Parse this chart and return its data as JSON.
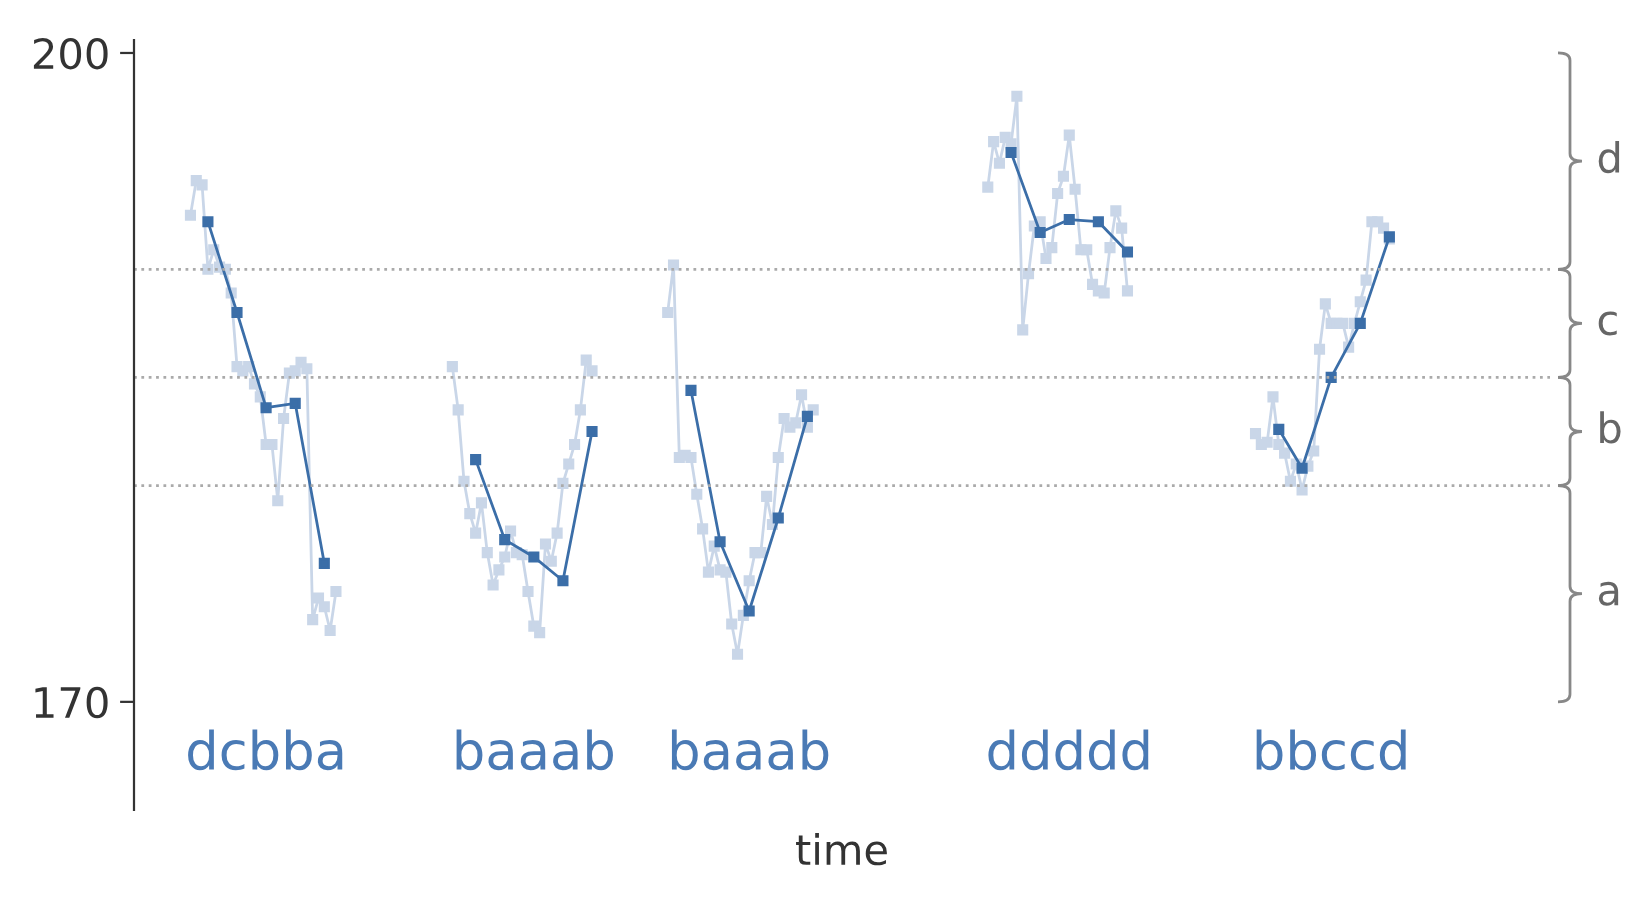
{
  "chart_data": {
    "type": "line",
    "xlabel": "time",
    "ylim": [
      165,
      200.6
    ],
    "yticks": [
      170,
      200
    ],
    "categories": [
      null,
      null,
      null,
      null,
      null,
      null,
      null,
      null,
      null,
      null,
      null,
      null,
      null,
      "dcbba",
      null,
      null,
      null,
      null,
      null,
      null,
      null,
      null,
      null,
      null,
      null,
      null,
      null,
      null,
      null,
      null,
      null,
      null,
      null,
      null,
      null,
      null,
      null,
      null,
      null,
      null,
      null,
      null,
      null,
      null,
      null,
      null,
      null,
      null,
      null,
      null,
      null,
      null,
      null,
      null,
      null,
      null,
      null,
      null,
      null,
      "baaab",
      null,
      null,
      null,
      null,
      null,
      null,
      null,
      null,
      null,
      null,
      null,
      null,
      null,
      null,
      null,
      null,
      null,
      null,
      null,
      null,
      null,
      null,
      null,
      null,
      null,
      null,
      null,
      null,
      null,
      null,
      null,
      null,
      null,
      null,
      null,
      null,
      "baaab",
      null,
      null,
      null,
      null,
      null,
      null,
      null,
      null,
      null,
      null,
      null,
      null,
      null,
      null,
      null,
      null,
      null,
      null,
      null,
      null,
      null,
      null,
      null,
      null,
      null,
      null,
      null,
      null,
      null,
      null,
      null,
      null,
      null,
      null,
      null,
      null,
      null,
      null,
      null,
      null,
      null,
      null,
      null,
      null,
      null,
      null,
      null,
      null,
      null,
      null,
      null,
      null,
      null,
      null,
      "ddddd",
      null,
      null,
      null,
      null,
      null,
      null,
      null,
      null,
      null,
      null,
      null,
      null,
      null,
      null,
      null,
      null,
      null,
      null,
      null,
      null,
      null,
      null,
      null,
      null,
      null,
      null,
      null,
      null,
      null,
      null,
      null,
      null,
      null,
      null,
      null,
      null,
      null,
      null,
      null,
      null,
      null,
      null,
      null,
      null,
      "bbccd",
      null,
      null,
      null,
      null,
      null,
      null,
      null,
      null,
      null,
      null
    ],
    "marker": "square",
    "grid": false,
    "ref_lines": [
      {
        "axis": "y",
        "value": 180,
        "line_style": "dotted",
        "color": "#aaaaaa"
      },
      {
        "axis": "y",
        "value": 185,
        "line_style": "dotted",
        "color": "#aaaaaa"
      },
      {
        "axis": "y",
        "value": 190,
        "line_style": "dotted",
        "color": "#aaaaaa"
      }
    ],
    "annotations": [
      "a",
      "b",
      "c",
      "d"
    ],
    "series": [
      {
        "color": "#c9d6e8",
        "values": [
          192.5,
          194.1,
          193.9,
          190.0,
          190.9,
          190.1,
          190.0,
          188.9,
          185.5,
          185.3,
          185.5,
          184.7,
          184.1,
          181.9,
          181.9,
          179.3,
          183.1,
          185.2,
          185.3,
          185.7,
          185.4,
          173.8,
          174.8,
          174.4,
          173.3,
          175.1,
          null,
          null,
          null,
          null,
          null,
          null,
          null,
          null,
          null,
          null,
          null,
          null,
          null,
          null,
          null,
          null,
          null,
          null,
          null,
          null,
          null,
          null,
          null,
          null,
          null,
          null,
          null,
          null,
          null,
          null,
          null,
          null,
          null,
          null,
          null,
          null,
          null,
          null,
          null,
          null,
          null,
          null,
          null,
          null,
          null,
          null,
          null,
          null,
          null,
          null,
          null,
          null,
          null,
          null,
          null,
          null,
          null,
          null,
          null,
          null,
          null,
          null,
          null,
          null,
          null,
          null,
          null,
          null,
          null,
          null,
          null,
          null,
          null,
          null,
          null,
          null,
          null,
          null,
          null,
          null,
          null,
          null,
          null,
          null,
          null,
          null,
          null,
          null,
          null,
          null,
          null,
          null,
          null,
          null,
          null,
          null,
          null,
          null,
          null,
          null,
          null,
          null,
          null,
          null,
          null,
          null,
          null,
          null,
          null,
          null,
          null,
          null,
          null,
          null,
          null,
          null,
          null,
          null,
          null,
          null,
          null,
          null,
          null,
          null,
          null,
          null,
          null,
          null,
          null,
          null,
          null,
          null,
          null,
          null,
          null,
          null,
          null,
          null,
          null,
          null,
          null,
          null,
          null,
          null,
          null,
          null,
          null,
          null,
          null,
          null,
          null,
          null,
          null,
          null,
          null,
          null,
          null,
          null,
          null,
          null,
          null,
          null,
          null,
          null,
          null,
          null,
          null,
          null,
          null,
          null,
          null,
          null,
          null,
          null,
          null,
          null,
          null,
          null,
          null,
          null,
          null
        ]
      },
      {
        "color": "#c9d6e8",
        "values": [
          null,
          null,
          null,
          null,
          null,
          null,
          null,
          null,
          null,
          null,
          null,
          null,
          null,
          null,
          null,
          null,
          null,
          null,
          null,
          null,
          null,
          null,
          null,
          null,
          null,
          null,
          null,
          null,
          null,
          null,
          null,
          null,
          null,
          null,
          null,
          null,
          null,
          null,
          null,
          null,
          null,
          null,
          null,
          null,
          null,
          185.5,
          183.5,
          180.2,
          178.7,
          177.8,
          179.2,
          176.9,
          175.4,
          176.1,
          176.7,
          177.9,
          176.9,
          176.8,
          175.1,
          173.5,
          173.2,
          177.3,
          176.5,
          177.8,
          180.1,
          181.0,
          181.9,
          183.5,
          185.8,
          185.3,
          null,
          null,
          null,
          null,
          null,
          null,
          null,
          null,
          null,
          null,
          null,
          null,
          null,
          null,
          null,
          null,
          null,
          null,
          null,
          null,
          null,
          null,
          null,
          null,
          null,
          null,
          null,
          null,
          null,
          null,
          null,
          null,
          null,
          null,
          null,
          null,
          null,
          null,
          null,
          null,
          null,
          null,
          null,
          null,
          null,
          null,
          null,
          null,
          null,
          null,
          null,
          null,
          null,
          null,
          null,
          null,
          null,
          null,
          null,
          null,
          null,
          null,
          null,
          null,
          null,
          null,
          null,
          null,
          null,
          null,
          null,
          null,
          null,
          null,
          null,
          null,
          null,
          null,
          null,
          null,
          null,
          null,
          null,
          null,
          null,
          null,
          null,
          null,
          null,
          null,
          null,
          null,
          null,
          null,
          null,
          null,
          null,
          null,
          null,
          null,
          null,
          null,
          null,
          null,
          null,
          null,
          null,
          null,
          null,
          null,
          null,
          null,
          null,
          null,
          null,
          null,
          null,
          null,
          null,
          null,
          null,
          null,
          null,
          null,
          null,
          null,
          null,
          null,
          null,
          null,
          null,
          null,
          null,
          null,
          null,
          null,
          null
        ]
      },
      {
        "color": "#c9d6e8",
        "values": [
          null,
          null,
          null,
          null,
          null,
          null,
          null,
          null,
          null,
          null,
          null,
          null,
          null,
          null,
          null,
          null,
          null,
          null,
          null,
          null,
          null,
          null,
          null,
          null,
          null,
          null,
          null,
          null,
          null,
          null,
          null,
          null,
          null,
          null,
          null,
          null,
          null,
          null,
          null,
          null,
          null,
          null,
          null,
          null,
          null,
          null,
          null,
          null,
          null,
          null,
          null,
          null,
          null,
          null,
          null,
          null,
          null,
          null,
          null,
          null,
          null,
          null,
          null,
          null,
          null,
          null,
          null,
          null,
          null,
          null,
          null,
          null,
          null,
          null,
          null,
          null,
          null,
          null,
          null,
          null,
          null,
          null,
          188.0,
          190.2,
          181.3,
          181.4,
          181.3,
          179.6,
          178.0,
          176.0,
          177.2,
          176.1,
          176.0,
          173.6,
          172.2,
          174.0,
          175.6,
          176.9,
          176.9,
          179.5,
          178.2,
          181.3,
          183.1,
          182.7,
          182.9,
          184.2,
          182.7,
          183.5,
          null,
          null,
          null,
          null,
          null,
          null,
          null,
          null,
          null,
          null,
          null,
          null,
          null,
          null,
          null,
          null,
          null,
          null,
          null,
          null,
          null,
          null,
          null,
          null,
          null,
          null,
          null,
          null,
          null,
          null,
          null,
          null,
          null,
          null,
          null,
          null,
          null,
          null,
          null,
          null,
          null,
          null,
          null,
          null,
          null,
          null,
          null,
          null,
          null,
          null,
          null,
          null,
          null,
          null,
          null,
          null,
          null,
          null,
          null,
          null,
          null,
          null,
          null,
          null,
          null,
          null,
          null,
          null,
          null,
          null,
          null,
          null,
          null,
          null,
          null,
          null,
          null,
          null,
          null,
          null,
          null,
          null,
          null,
          null,
          null,
          null,
          null,
          null,
          null,
          null,
          null,
          null,
          null,
          null,
          null,
          null,
          null,
          null,
          null
        ]
      },
      {
        "color": "#c9d6e8",
        "values": [
          null,
          null,
          null,
          null,
          null,
          null,
          null,
          null,
          null,
          null,
          null,
          null,
          null,
          null,
          null,
          null,
          null,
          null,
          null,
          null,
          null,
          null,
          null,
          null,
          null,
          null,
          null,
          null,
          null,
          null,
          null,
          null,
          null,
          null,
          null,
          null,
          null,
          null,
          null,
          null,
          null,
          null,
          null,
          null,
          null,
          null,
          null,
          null,
          null,
          null,
          null,
          null,
          null,
          null,
          null,
          null,
          null,
          null,
          null,
          null,
          null,
          null,
          null,
          null,
          null,
          null,
          null,
          null,
          null,
          null,
          null,
          null,
          null,
          null,
          null,
          null,
          null,
          null,
          null,
          null,
          null,
          null,
          null,
          null,
          null,
          null,
          null,
          null,
          null,
          null,
          null,
          null,
          null,
          null,
          null,
          null,
          null,
          null,
          null,
          null,
          null,
          null,
          null,
          null,
          null,
          null,
          null,
          null,
          null,
          null,
          null,
          null,
          null,
          null,
          null,
          null,
          null,
          null,
          null,
          null,
          null,
          null,
          null,
          null,
          null,
          null,
          null,
          null,
          null,
          null,
          null,
          null,
          null,
          null,
          null,
          null,
          null,
          193.8,
          195.9,
          194.9,
          196.1,
          195.8,
          198.0,
          187.2,
          189.8,
          192.0,
          192.2,
          190.5,
          191.0,
          193.5,
          194.3,
          196.2,
          193.7,
          190.9,
          190.9,
          189.3,
          189.0,
          188.9,
          191.0,
          192.7,
          191.9,
          189.0,
          null,
          null,
          null,
          null,
          null,
          null,
          null,
          null,
          null,
          null,
          null,
          null,
          null,
          null,
          null,
          null,
          null,
          null,
          null,
          null,
          null,
          null,
          null,
          null,
          null,
          null,
          null,
          null,
          null,
          null,
          null,
          null,
          null,
          null,
          null,
          null,
          null,
          null,
          null,
          null,
          null,
          null,
          null,
          null,
          null
        ]
      },
      {
        "color": "#c9d6e8",
        "values": [
          null,
          null,
          null,
          null,
          null,
          null,
          null,
          null,
          null,
          null,
          null,
          null,
          null,
          null,
          null,
          null,
          null,
          null,
          null,
          null,
          null,
          null,
          null,
          null,
          null,
          null,
          null,
          null,
          null,
          null,
          null,
          null,
          null,
          null,
          null,
          null,
          null,
          null,
          null,
          null,
          null,
          null,
          null,
          null,
          null,
          null,
          null,
          null,
          null,
          null,
          null,
          null,
          null,
          null,
          null,
          null,
          null,
          null,
          null,
          null,
          null,
          null,
          null,
          null,
          null,
          null,
          null,
          null,
          null,
          null,
          null,
          null,
          null,
          null,
          null,
          null,
          null,
          null,
          null,
          null,
          null,
          null,
          null,
          null,
          null,
          null,
          null,
          null,
          null,
          null,
          null,
          null,
          null,
          null,
          null,
          null,
          null,
          null,
          null,
          null,
          null,
          null,
          null,
          null,
          null,
          null,
          null,
          null,
          null,
          null,
          null,
          null,
          null,
          null,
          null,
          null,
          null,
          null,
          null,
          null,
          null,
          null,
          null,
          null,
          null,
          null,
          null,
          null,
          null,
          null,
          null,
          null,
          null,
          null,
          null,
          null,
          null,
          null,
          null,
          null,
          null,
          null,
          null,
          null,
          null,
          null,
          null,
          null,
          null,
          null,
          null,
          null,
          null,
          null,
          null,
          null,
          null,
          null,
          null,
          null,
          null,
          null,
          null,
          null,
          null,
          null,
          null,
          null,
          null,
          null,
          null,
          null,
          null,
          null,
          null,
          null,
          null,
          null,
          null,
          null,
          null,
          null,
          null,
          182.4,
          181.9,
          182.0,
          184.1,
          181.9,
          181.5,
          180.2,
          181.0,
          179.8,
          180.9,
          181.6,
          186.3,
          188.4,
          187.5,
          187.5,
          187.5,
          186.4,
          187.5,
          188.5,
          189.5,
          192.2,
          192.2,
          191.9,
          191.4
        ]
      },
      {
        "color": "#3b6ea8",
        "values": [
          null,
          null,
          null,
          192.2,
          null,
          null,
          null,
          null,
          188.0,
          null,
          null,
          null,
          null,
          183.6,
          null,
          null,
          null,
          null,
          183.8,
          null,
          null,
          null,
          null,
          176.4,
          null,
          null,
          null,
          null,
          null,
          null,
          null,
          null,
          null,
          null,
          null,
          null,
          null,
          null,
          null,
          null,
          null,
          null,
          null,
          null,
          null,
          null,
          null,
          null,
          null,
          null,
          null,
          null,
          null,
          null,
          null,
          null,
          null,
          null,
          null,
          null,
          null,
          null,
          null,
          null,
          null,
          null,
          null,
          null,
          null,
          null,
          null,
          null,
          null,
          null,
          null,
          null,
          null,
          null,
          null,
          null,
          null,
          null,
          null,
          null,
          null,
          null,
          null,
          null,
          null,
          null,
          null,
          null,
          null,
          null,
          null,
          null,
          null,
          null,
          null,
          null,
          null,
          null,
          null,
          null,
          null,
          null,
          null,
          null,
          null,
          null,
          null,
          null,
          null,
          null,
          null,
          null,
          null,
          null,
          null,
          null,
          null,
          null,
          null,
          null,
          null,
          null,
          null,
          null,
          null,
          null,
          null,
          null,
          null,
          null,
          null,
          null,
          null,
          null,
          null,
          null,
          null,
          null,
          null,
          null,
          null,
          null,
          null,
          null,
          null,
          null,
          null,
          null,
          null,
          null,
          null,
          null,
          null,
          null,
          null,
          null,
          null,
          null,
          null,
          null,
          null,
          null,
          null,
          null,
          null,
          null,
          null,
          null,
          null,
          null,
          null,
          null,
          null,
          null,
          null,
          null,
          null,
          null,
          null,
          null,
          null,
          null,
          null,
          null,
          null,
          null,
          null,
          null,
          null,
          null,
          null,
          null,
          null,
          null,
          null,
          null,
          null,
          null,
          null,
          null,
          null,
          null,
          null
        ]
      },
      {
        "color": "#3b6ea8",
        "values": [
          null,
          null,
          null,
          null,
          null,
          null,
          null,
          null,
          null,
          null,
          null,
          null,
          null,
          null,
          null,
          null,
          null,
          null,
          null,
          null,
          null,
          null,
          null,
          null,
          null,
          null,
          null,
          null,
          null,
          null,
          null,
          null,
          null,
          null,
          null,
          null,
          null,
          null,
          null,
          null,
          null,
          null,
          null,
          null,
          null,
          null,
          null,
          null,
          null,
          181.2,
          null,
          null,
          null,
          null,
          177.5,
          null,
          null,
          null,
          null,
          176.7,
          null,
          null,
          null,
          null,
          175.6,
          null,
          null,
          null,
          null,
          182.5,
          null,
          null,
          null,
          null,
          null,
          null,
          null,
          null,
          null,
          null,
          null,
          null,
          null,
          null,
          null,
          null,
          null,
          null,
          null,
          null,
          null,
          null,
          null,
          null,
          null,
          null,
          null,
          null,
          null,
          null,
          null,
          null,
          null,
          null,
          null,
          null,
          null,
          null,
          null,
          null,
          null,
          null,
          null,
          null,
          null,
          null,
          null,
          null,
          null,
          null,
          null,
          null,
          null,
          null,
          null,
          null,
          null,
          null,
          null,
          null,
          null,
          null,
          null,
          null,
          null,
          null,
          null,
          null,
          null,
          null,
          null,
          null,
          null,
          null,
          null,
          null,
          null,
          null,
          null,
          null,
          null,
          null,
          null,
          null,
          null,
          null,
          null,
          null,
          null,
          null,
          null,
          null,
          null,
          null,
          null,
          null,
          null,
          null,
          null,
          null,
          null,
          null,
          null,
          null,
          null,
          null,
          null,
          null,
          null,
          null,
          null,
          null,
          null,
          null,
          null,
          null,
          null,
          null,
          null,
          null,
          null,
          null,
          null,
          null,
          null,
          null,
          null,
          null,
          null,
          null,
          null,
          null,
          null,
          null,
          null,
          null,
          null
        ]
      },
      {
        "color": "#3b6ea8",
        "values": [
          null,
          null,
          null,
          null,
          null,
          null,
          null,
          null,
          null,
          null,
          null,
          null,
          null,
          null,
          null,
          null,
          null,
          null,
          null,
          null,
          null,
          null,
          null,
          null,
          null,
          null,
          null,
          null,
          null,
          null,
          null,
          null,
          null,
          null,
          null,
          null,
          null,
          null,
          null,
          null,
          null,
          null,
          null,
          null,
          null,
          null,
          null,
          null,
          null,
          null,
          null,
          null,
          null,
          null,
          null,
          null,
          null,
          null,
          null,
          null,
          null,
          null,
          null,
          null,
          null,
          null,
          null,
          null,
          null,
          null,
          null,
          null,
          null,
          null,
          null,
          null,
          null,
          null,
          null,
          null,
          null,
          null,
          null,
          null,
          null,
          null,
          184.4,
          null,
          null,
          null,
          null,
          177.4,
          null,
          null,
          null,
          null,
          174.2,
          null,
          null,
          null,
          null,
          178.5,
          null,
          null,
          null,
          null,
          183.2,
          null,
          null,
          null,
          null,
          null,
          null,
          null,
          null,
          null,
          null,
          null,
          null,
          null,
          null,
          null,
          null,
          null,
          null,
          null,
          null,
          null,
          null,
          null,
          null,
          null,
          null,
          null,
          null,
          null,
          null,
          null,
          null,
          null,
          null,
          null,
          null,
          null,
          null,
          null,
          null,
          null,
          null,
          null,
          null,
          null,
          null,
          null,
          null,
          null,
          null,
          null,
          null,
          null,
          null,
          null,
          null,
          null,
          null,
          null,
          null,
          null,
          null,
          null,
          null,
          null,
          null,
          null,
          null,
          null,
          null,
          null,
          null,
          null,
          null,
          null,
          null,
          null,
          null,
          null,
          null,
          null,
          null,
          null,
          null,
          null,
          null,
          null,
          null,
          null,
          null,
          null,
          null,
          null,
          null,
          null,
          null,
          null,
          null,
          null,
          null
        ]
      },
      {
        "color": "#3b6ea8",
        "values": [
          null,
          null,
          null,
          null,
          null,
          null,
          null,
          null,
          null,
          null,
          null,
          null,
          null,
          null,
          null,
          null,
          null,
          null,
          null,
          null,
          null,
          null,
          null,
          null,
          null,
          null,
          null,
          null,
          null,
          null,
          null,
          null,
          null,
          null,
          null,
          null,
          null,
          null,
          null,
          null,
          null,
          null,
          null,
          null,
          null,
          null,
          null,
          null,
          null,
          null,
          null,
          null,
          null,
          null,
          null,
          null,
          null,
          null,
          null,
          null,
          null,
          null,
          null,
          null,
          null,
          null,
          null,
          null,
          null,
          null,
          null,
          null,
          null,
          null,
          null,
          null,
          null,
          null,
          null,
          null,
          null,
          null,
          null,
          null,
          null,
          null,
          null,
          null,
          null,
          null,
          null,
          null,
          null,
          null,
          null,
          null,
          null,
          null,
          null,
          null,
          null,
          null,
          null,
          null,
          null,
          null,
          null,
          null,
          null,
          null,
          null,
          null,
          null,
          null,
          null,
          null,
          null,
          null,
          null,
          null,
          null,
          null,
          null,
          null,
          null,
          null,
          null,
          null,
          null,
          null,
          null,
          null,
          null,
          null,
          null,
          null,
          null,
          null,
          null,
          null,
          null,
          195.4,
          null,
          null,
          null,
          null,
          191.7,
          null,
          null,
          null,
          null,
          192.3,
          null,
          null,
          null,
          null,
          192.2,
          null,
          null,
          null,
          null,
          190.8,
          null,
          null,
          null,
          null,
          null,
          null,
          null,
          null,
          null,
          null,
          null,
          null,
          null,
          null,
          null,
          null,
          null,
          null,
          null,
          null,
          null,
          null,
          null,
          null,
          null,
          null,
          null,
          null,
          null,
          null,
          null,
          null,
          null,
          null,
          null,
          null,
          null,
          null,
          null,
          null,
          null,
          null,
          null,
          null,
          null
        ]
      },
      {
        "color": "#3b6ea8",
        "values": [
          null,
          null,
          null,
          null,
          null,
          null,
          null,
          null,
          null,
          null,
          null,
          null,
          null,
          null,
          null,
          null,
          null,
          null,
          null,
          null,
          null,
          null,
          null,
          null,
          null,
          null,
          null,
          null,
          null,
          null,
          null,
          null,
          null,
          null,
          null,
          null,
          null,
          null,
          null,
          null,
          null,
          null,
          null,
          null,
          null,
          null,
          null,
          null,
          null,
          null,
          null,
          null,
          null,
          null,
          null,
          null,
          null,
          null,
          null,
          null,
          null,
          null,
          null,
          null,
          null,
          null,
          null,
          null,
          null,
          null,
          null,
          null,
          null,
          null,
          null,
          null,
          null,
          null,
          null,
          null,
          null,
          null,
          null,
          null,
          null,
          null,
          null,
          null,
          null,
          null,
          null,
          null,
          null,
          null,
          null,
          null,
          null,
          null,
          null,
          null,
          null,
          null,
          null,
          null,
          null,
          null,
          null,
          null,
          null,
          null,
          null,
          null,
          null,
          null,
          null,
          null,
          null,
          null,
          null,
          null,
          null,
          null,
          null,
          null,
          null,
          null,
          null,
          null,
          null,
          null,
          null,
          null,
          null,
          null,
          null,
          null,
          null,
          null,
          null,
          null,
          null,
          null,
          null,
          null,
          null,
          null,
          null,
          null,
          null,
          null,
          null,
          null,
          null,
          null,
          null,
          null,
          null,
          null,
          null,
          null,
          null,
          null,
          null,
          null,
          null,
          null,
          null,
          null,
          null,
          null,
          null,
          null,
          null,
          null,
          null,
          null,
          null,
          null,
          null,
          null,
          null,
          null,
          null,
          null,
          null,
          null,
          null,
          182.6,
          null,
          null,
          null,
          180.8,
          null,
          null,
          null,
          null,
          185.0,
          null,
          null,
          null,
          null,
          187.5,
          null,
          null,
          null,
          null,
          191.5
        ]
      }
    ]
  }
}
